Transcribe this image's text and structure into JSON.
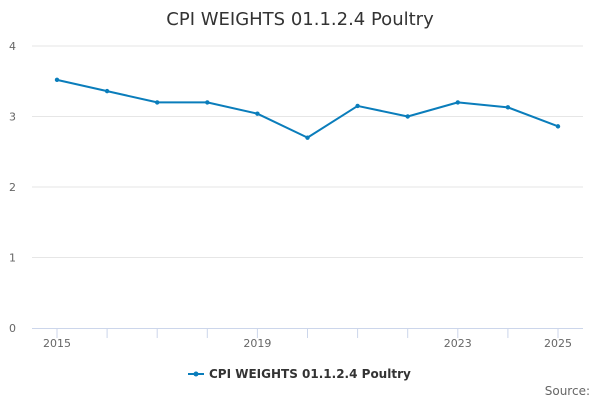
{
  "chart_data": {
    "type": "line",
    "title": "CPI WEIGHTS 01.1.2.4 Poultry",
    "xlabel": "",
    "ylabel": "",
    "x": [
      2015,
      2016,
      2017,
      2018,
      2019,
      2020,
      2021,
      2022,
      2023,
      2024,
      2025
    ],
    "x_tick_labels": [
      "2015",
      "2019",
      "2023",
      "2025"
    ],
    "x_tick_values": [
      2015,
      2019,
      2023,
      2025
    ],
    "xlim": [
      2015,
      2025
    ],
    "ylim": [
      0,
      4
    ],
    "y_ticks": [
      0,
      1,
      2,
      3,
      4
    ],
    "grid": true,
    "legend_position": "bottom-center",
    "series": [
      {
        "name": "CPI WEIGHTS 01.1.2.4 Poultry",
        "color": "#0a7dbb",
        "values": [
          3.52,
          3.36,
          3.2,
          3.2,
          3.04,
          2.7,
          3.15,
          3.0,
          3.2,
          3.13,
          2.86
        ]
      }
    ]
  },
  "credits": "Source:"
}
